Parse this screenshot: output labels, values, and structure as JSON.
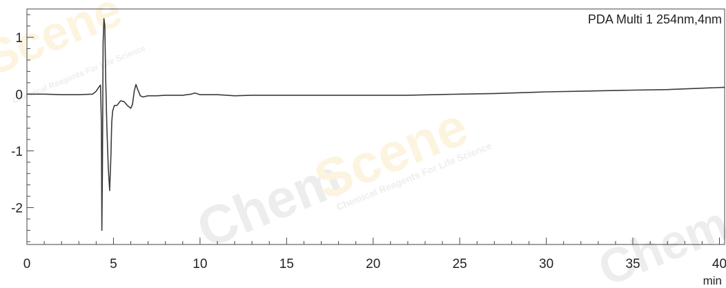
{
  "chart_data": {
    "type": "line",
    "legend": "PDA Multi 1 254nm,4nm",
    "legend_position": "top-right",
    "xlabel": "min",
    "ylabel": "",
    "xlim": [
      0,
      40.3
    ],
    "ylim": [
      -2.65,
      1.5
    ],
    "grid": false,
    "x_ticks": [
      0,
      5,
      10,
      15,
      20,
      25,
      30,
      35,
      40
    ],
    "x_tick_labels": [
      "0",
      "5",
      "10",
      "15",
      "20",
      "25",
      "30",
      "35",
      "40"
    ],
    "y_ticks": [
      1,
      0,
      -1,
      -2
    ],
    "y_tick_labels": [
      "1",
      "0",
      "-1",
      "-2"
    ],
    "x_minor_step": 1,
    "y_minor_step": 0.2,
    "line_color": "#3a3a3a",
    "series": [
      {
        "x": [
          0,
          1,
          2,
          3,
          3.8,
          4.0,
          4.15,
          4.25,
          4.3,
          4.33,
          4.36,
          4.4,
          4.45,
          4.5,
          4.55,
          4.62,
          4.7,
          4.78,
          4.85,
          4.9,
          4.95,
          5.05,
          5.2,
          5.4,
          5.6,
          5.8,
          6.0,
          6.1,
          6.2,
          6.3,
          6.4,
          6.55,
          6.7,
          7.0,
          7.5,
          8,
          8.5,
          9,
          9.5,
          9.7,
          10,
          11,
          12,
          13,
          14,
          15,
          17,
          20,
          22,
          25,
          27,
          30,
          32,
          35,
          37,
          40.3
        ],
        "y": [
          0,
          0,
          -0.01,
          -0.01,
          0.0,
          0.05,
          0.12,
          0.16,
          -0.5,
          -2.4,
          -1.4,
          0.9,
          1.33,
          1.2,
          0.3,
          -0.6,
          -1.3,
          -1.7,
          -1.1,
          -0.5,
          -0.3,
          -0.2,
          -0.2,
          -0.12,
          -0.13,
          -0.2,
          -0.25,
          -0.18,
          0.05,
          0.17,
          0.08,
          -0.03,
          -0.05,
          -0.03,
          -0.03,
          -0.02,
          -0.02,
          -0.02,
          0.0,
          0.02,
          -0.01,
          -0.01,
          -0.03,
          -0.02,
          -0.02,
          -0.02,
          -0.02,
          -0.02,
          -0.02,
          0.0,
          0.01,
          0.04,
          0.05,
          0.07,
          0.08,
          0.12
        ]
      }
    ]
  },
  "watermark": {
    "brand_a": "Chem",
    "brand_b": "Scene",
    "tagline": "Chemical Reagents For Life Science"
  }
}
